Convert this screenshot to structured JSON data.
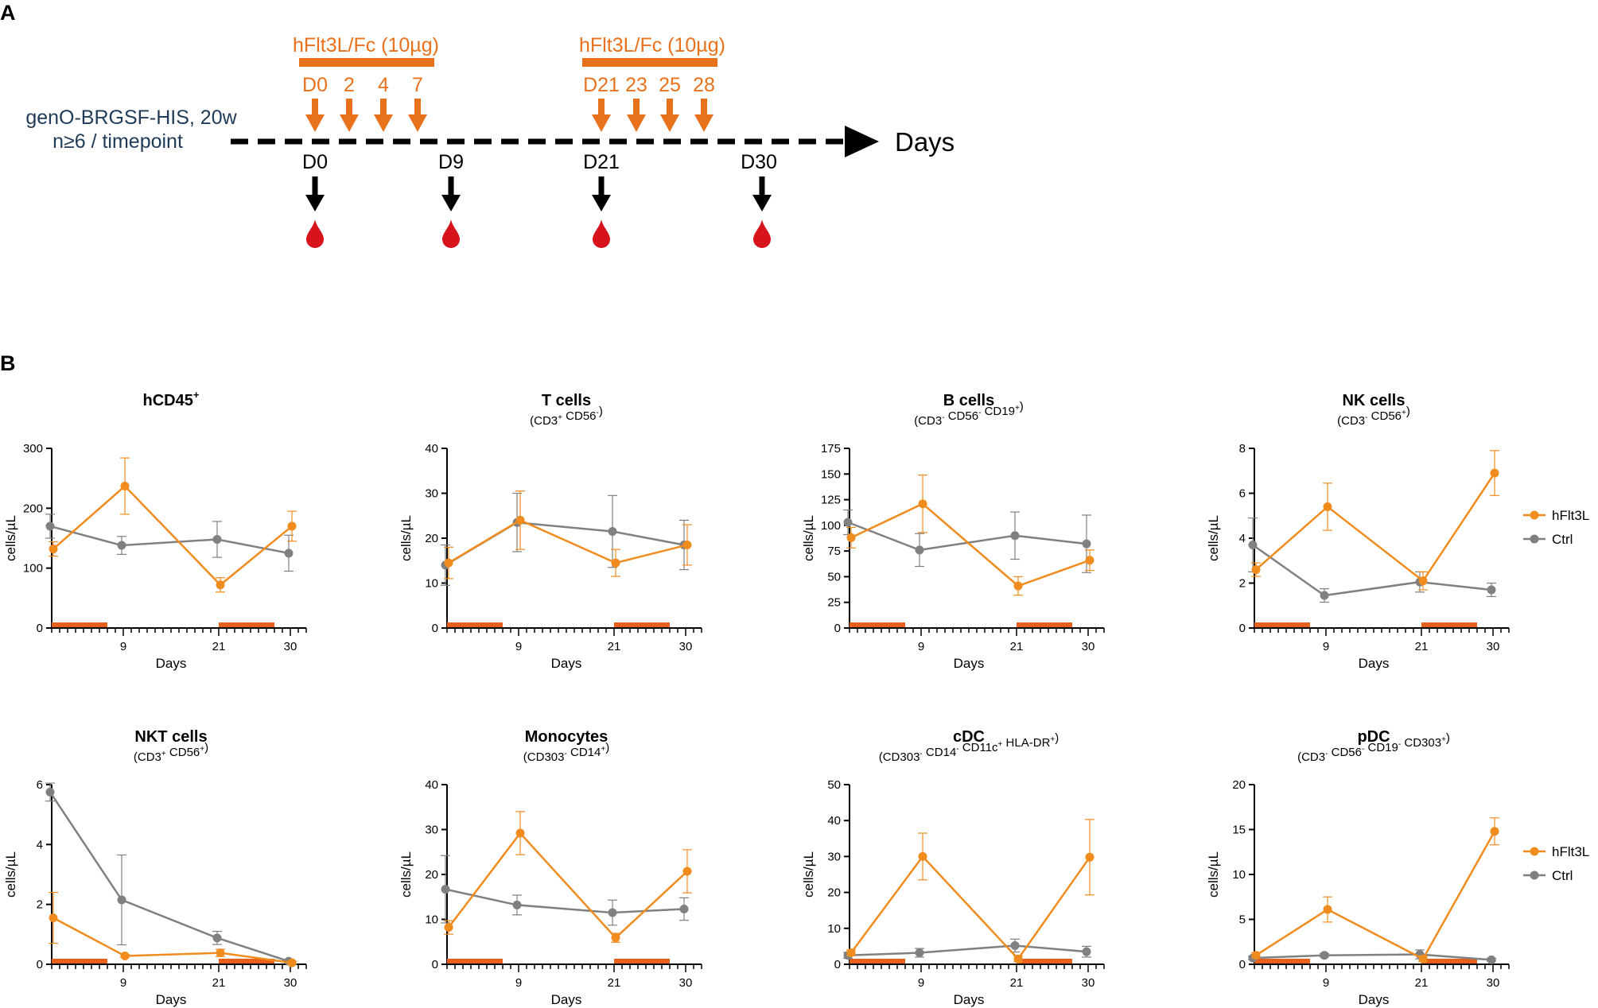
{
  "panel_a": {
    "letter": "A",
    "model_line1": "genO-BRGSF-HIS, 20w",
    "model_line2": "n≥6 / timepoint",
    "treatment_label_1": "hFlt3L/Fc (10µg)",
    "treatment_label_2": "hFlt3L/Fc (10µg)",
    "injection_days_1": [
      "D0",
      "2",
      "4",
      "7"
    ],
    "injection_days_2": [
      "D21",
      "23",
      "25",
      "28"
    ],
    "sampling_days": [
      "D0",
      "D9",
      "D21",
      "D30"
    ],
    "axis_label": "Days",
    "colors": {
      "treatment": "#e8711c",
      "arrow": "#000000",
      "blood": "#d7141c"
    },
    "icons": [
      "down-arrow-icon",
      "blood-drop-icon",
      "right-arrow-icon"
    ]
  },
  "panel_b_letter": "B",
  "legend": {
    "hflt3l": "hFlt3L",
    "ctrl": "Ctrl"
  },
  "colors": {
    "hflt3l": "#f08c1e",
    "ctrl": "#808080",
    "treatment_bar": "#e8611c",
    "axis": "#000000"
  },
  "chart_data": [
    {
      "type": "line",
      "title": "hCD45",
      "title_sup": "+",
      "subtitle": [],
      "xlabel": "Days",
      "ylabel": "cells/µL",
      "ylim": [
        0,
        300
      ],
      "yticks": [
        0,
        100,
        200,
        300
      ],
      "x": [
        0,
        9,
        21,
        30
      ],
      "xticks": [
        9,
        21,
        30
      ],
      "treatment_periods": [
        [
          0,
          7
        ],
        [
          21,
          28
        ]
      ],
      "series": [
        {
          "name": "hFlt3L",
          "values": [
            132,
            237,
            72,
            170
          ],
          "err": [
            12,
            47,
            12,
            25
          ]
        },
        {
          "name": "Ctrl",
          "values": [
            170,
            138,
            148,
            125
          ],
          "err": [
            20,
            15,
            30,
            30
          ]
        }
      ]
    },
    {
      "type": "line",
      "title": "T cells",
      "title_sup": "",
      "subtitle": [
        {
          "t": "(CD3"
        },
        {
          "t": "+",
          "sup": true
        },
        {
          "t": " CD56"
        },
        {
          "t": "-",
          "sup": true
        },
        {
          "t": ")"
        }
      ],
      "xlabel": "Days",
      "ylabel": "cells/µL",
      "ylim": [
        0,
        40
      ],
      "yticks": [
        0,
        10,
        20,
        30,
        40
      ],
      "x": [
        0,
        9,
        21,
        30
      ],
      "xticks": [
        9,
        21,
        30
      ],
      "treatment_periods": [
        [
          0,
          7
        ],
        [
          21,
          28
        ]
      ],
      "series": [
        {
          "name": "hFlt3L",
          "values": [
            14.5,
            24,
            14.5,
            18.5
          ],
          "err": [
            3.5,
            6.5,
            3,
            4.5
          ]
        },
        {
          "name": "Ctrl",
          "values": [
            14,
            23.5,
            21.5,
            18.5
          ],
          "err": [
            4.5,
            6.5,
            8,
            5.5
          ]
        }
      ]
    },
    {
      "type": "line",
      "title": "B cells",
      "title_sup": "",
      "subtitle": [
        {
          "t": "(CD3"
        },
        {
          "t": "-",
          "sup": true
        },
        {
          "t": " CD56"
        },
        {
          "t": "-",
          "sup": true
        },
        {
          "t": " CD19"
        },
        {
          "t": "+",
          "sup": true
        },
        {
          "t": ")"
        }
      ],
      "xlabel": "Days",
      "ylabel": "cells/µL",
      "ylim": [
        0,
        175
      ],
      "yticks": [
        0,
        25,
        50,
        75,
        100,
        125,
        150,
        175
      ],
      "x": [
        0,
        9,
        21,
        30
      ],
      "xticks": [
        9,
        21,
        30
      ],
      "treatment_periods": [
        [
          0,
          7
        ],
        [
          21,
          28
        ]
      ],
      "series": [
        {
          "name": "hFlt3L",
          "values": [
            88,
            121,
            41,
            66
          ],
          "err": [
            10,
            28,
            9,
            10
          ]
        },
        {
          "name": "Ctrl",
          "values": [
            103,
            76,
            90,
            82
          ],
          "err": [
            12,
            16,
            23,
            28
          ]
        }
      ]
    },
    {
      "type": "line",
      "title": "NK cells",
      "title_sup": "",
      "subtitle": [
        {
          "t": "(CD3"
        },
        {
          "t": "-",
          "sup": true
        },
        {
          "t": " CD56"
        },
        {
          "t": "+",
          "sup": true
        },
        {
          "t": ")"
        }
      ],
      "xlabel": "Days",
      "ylabel": "cells/µL",
      "ylim": [
        0,
        8
      ],
      "yticks": [
        0,
        2,
        4,
        6,
        8
      ],
      "x": [
        0,
        9,
        21,
        30
      ],
      "xticks": [
        9,
        21,
        30
      ],
      "treatment_periods": [
        [
          0,
          7
        ],
        [
          21,
          28
        ]
      ],
      "series": [
        {
          "name": "hFlt3L",
          "values": [
            2.6,
            5.4,
            2.1,
            6.9
          ],
          "err": [
            0.3,
            1.05,
            0.4,
            1.0
          ]
        },
        {
          "name": "Ctrl",
          "values": [
            3.7,
            1.45,
            2.05,
            1.7
          ],
          "err": [
            1.2,
            0.3,
            0.45,
            0.3
          ]
        }
      ]
    },
    {
      "type": "line",
      "title": "NKT cells",
      "title_sup": "",
      "subtitle": [
        {
          "t": "(CD3"
        },
        {
          "t": "+",
          "sup": true
        },
        {
          "t": " CD56"
        },
        {
          "t": "+",
          "sup": true
        },
        {
          "t": ")"
        }
      ],
      "xlabel": "Days",
      "ylabel": "cells/µL",
      "ylim": [
        0,
        6
      ],
      "yticks": [
        0,
        2,
        4,
        6
      ],
      "x": [
        0,
        9,
        21,
        30
      ],
      "xticks": [
        9,
        21,
        30
      ],
      "treatment_periods": [
        [
          0,
          7
        ],
        [
          21,
          28
        ]
      ],
      "series": [
        {
          "name": "hFlt3L",
          "values": [
            1.55,
            0.28,
            0.38,
            0.05
          ],
          "err": [
            0.85,
            0.05,
            0.12,
            0.05
          ]
        },
        {
          "name": "Ctrl",
          "values": [
            5.75,
            2.15,
            0.88,
            0.1
          ],
          "err": [
            0.3,
            1.5,
            0.22,
            0.05
          ]
        }
      ]
    },
    {
      "type": "line",
      "title": "Monocytes",
      "title_sup": "",
      "subtitle": [
        {
          "t": "(CD303"
        },
        {
          "t": "-",
          "sup": true
        },
        {
          "t": " CD14"
        },
        {
          "t": "+",
          "sup": true
        },
        {
          "t": ")"
        }
      ],
      "xlabel": "Days",
      "ylabel": "cells/µL",
      "ylim": [
        0,
        40
      ],
      "yticks": [
        0,
        10,
        20,
        30,
        40
      ],
      "x": [
        0,
        9,
        21,
        30
      ],
      "xticks": [
        9,
        21,
        30
      ],
      "treatment_periods": [
        [
          0,
          7
        ],
        [
          21,
          28
        ]
      ],
      "series": [
        {
          "name": "hFlt3L",
          "values": [
            8.2,
            29.2,
            5.9,
            20.7
          ],
          "err": [
            1.5,
            4.8,
            1.0,
            4.8
          ]
        },
        {
          "name": "Ctrl",
          "values": [
            16.7,
            13.2,
            11.5,
            12.3
          ],
          "err": [
            7.5,
            2.2,
            2.8,
            2.5
          ]
        }
      ]
    },
    {
      "type": "line",
      "title": "cDC",
      "title_sup": "",
      "subtitle": [
        {
          "t": "(CD303"
        },
        {
          "t": "-",
          "sup": true
        },
        {
          "t": " CD14"
        },
        {
          "t": "-",
          "sup": true
        },
        {
          "t": " CD11c"
        },
        {
          "t": "+",
          "sup": true
        },
        {
          "t": " HLA-DR"
        },
        {
          "t": "+",
          "sup": true
        },
        {
          "t": ")"
        }
      ],
      "xlabel": "Days",
      "ylabel": "cells/µL",
      "ylim": [
        0,
        50
      ],
      "yticks": [
        0,
        10,
        20,
        30,
        40,
        50
      ],
      "x": [
        0,
        9,
        21,
        30
      ],
      "xticks": [
        9,
        21,
        30
      ],
      "treatment_periods": [
        [
          0,
          7
        ],
        [
          21,
          28
        ]
      ],
      "series": [
        {
          "name": "hFlt3L",
          "values": [
            3.2,
            30,
            1.5,
            29.8
          ],
          "err": [
            0.8,
            6.5,
            0.8,
            10.5
          ]
        },
        {
          "name": "Ctrl",
          "values": [
            2.5,
            3.2,
            5.2,
            3.5
          ],
          "err": [
            0.8,
            1.2,
            1.8,
            1.5
          ]
        }
      ]
    },
    {
      "type": "line",
      "title": "pDC",
      "title_sup": "",
      "subtitle": [
        {
          "t": "(CD3"
        },
        {
          "t": "-",
          "sup": true
        },
        {
          "t": " CD56"
        },
        {
          "t": "-",
          "sup": true
        },
        {
          "t": " CD19"
        },
        {
          "t": "-",
          "sup": true
        },
        {
          "t": " CD303"
        },
        {
          "t": "+",
          "sup": true
        },
        {
          "t": ")"
        }
      ],
      "xlabel": "Days",
      "ylabel": "cells/µL",
      "ylim": [
        0,
        20
      ],
      "yticks": [
        0,
        5,
        10,
        15,
        20
      ],
      "x": [
        0,
        9,
        21,
        30
      ],
      "xticks": [
        9,
        21,
        30
      ],
      "treatment_periods": [
        [
          0,
          7
        ],
        [
          21,
          28
        ]
      ],
      "series": [
        {
          "name": "hFlt3L",
          "values": [
            1.0,
            6.1,
            0.6,
            14.8
          ],
          "err": [
            0.3,
            1.4,
            0.3,
            1.5
          ]
        },
        {
          "name": "Ctrl",
          "values": [
            0.7,
            1.0,
            1.1,
            0.5
          ],
          "err": [
            0.2,
            0.2,
            0.5,
            0.15
          ]
        }
      ]
    }
  ]
}
